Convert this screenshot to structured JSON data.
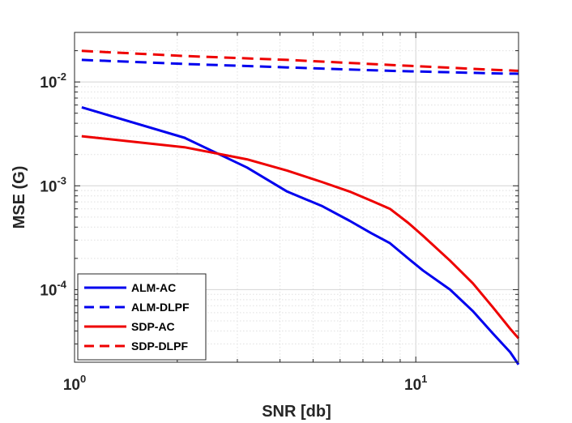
{
  "chart_data": {
    "type": "line",
    "title": "",
    "xlabel": "SNR [db]",
    "ylabel": "MSE (G)",
    "xscale": "log",
    "yscale": "log",
    "xlim": [
      1,
      20
    ],
    "ylim": [
      2e-05,
      0.03
    ],
    "grid": true,
    "legend_position": "bottom-left",
    "x_ticks": [
      {
        "value": 1,
        "base": "10",
        "exp": "0"
      },
      {
        "value": 10,
        "base": "10",
        "exp": "1"
      }
    ],
    "y_ticks": [
      {
        "value": 0.01,
        "base": "10",
        "exp": "-2"
      },
      {
        "value": 0.001,
        "base": "10",
        "exp": "-3"
      },
      {
        "value": 0.0001,
        "base": "10",
        "exp": "-4"
      }
    ],
    "series": [
      {
        "name": "ALM-AC",
        "color": "#0000ee",
        "dash": "solid",
        "x": [
          1.05,
          2.1,
          3.2,
          4.2,
          5.3,
          6.4,
          7.4,
          8.4,
          9.5,
          10.5,
          12.6,
          14.7,
          16.8,
          18.9,
          20
        ],
        "y": [
          0.0057,
          0.0029,
          0.0015,
          0.00088,
          0.00064,
          0.00046,
          0.00035,
          0.00028,
          0.0002,
          0.000153,
          0.0001,
          6.2e-05,
          3.8e-05,
          2.5e-05,
          1.9e-05
        ]
      },
      {
        "name": "ALM-DLPF",
        "color": "#0000ee",
        "dash": "dashed",
        "x": [
          1.05,
          2.1,
          4.2,
          8.4,
          12.6,
          16.8,
          20
        ],
        "y": [
          0.0163,
          0.0149,
          0.0138,
          0.0128,
          0.0124,
          0.0121,
          0.012
        ]
      },
      {
        "name": "SDP-AC",
        "color": "#ee0000",
        "dash": "solid",
        "x": [
          1.05,
          2.1,
          3.2,
          4.2,
          5.3,
          6.4,
          7.4,
          8.4,
          9.5,
          10.5,
          12.6,
          14.7,
          16.8,
          18.9,
          20
        ],
        "y": [
          0.003,
          0.00235,
          0.0018,
          0.0014,
          0.00109,
          0.00088,
          0.00072,
          0.0006,
          0.00044,
          0.00033,
          0.00019,
          0.000115,
          6.8e-05,
          4.2e-05,
          3.4e-05
        ]
      },
      {
        "name": "SDP-DLPF",
        "color": "#ee0000",
        "dash": "dashed",
        "x": [
          1.05,
          2.1,
          4.2,
          8.4,
          12.6,
          16.8,
          20
        ],
        "y": [
          0.0199,
          0.0178,
          0.0163,
          0.0146,
          0.0137,
          0.0131,
          0.0128
        ]
      }
    ]
  }
}
